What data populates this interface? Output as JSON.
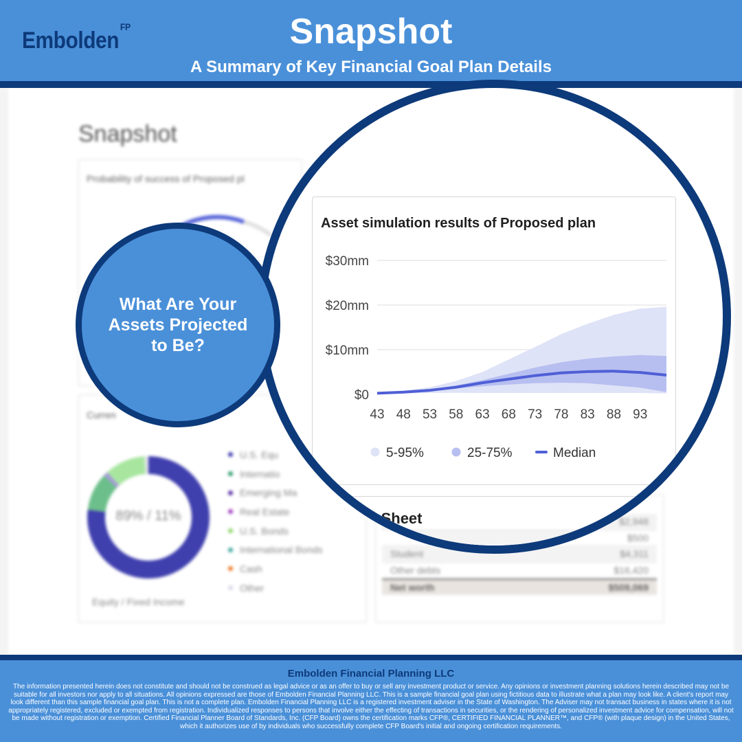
{
  "header": {
    "logo_text": "Embolden",
    "logo_superscript": "FP",
    "title": "Snapshot",
    "subtitle": "A Summary of Key Financial Goal Plan Details"
  },
  "background_page": {
    "title": "Snapshot",
    "probability_card_title": "Probability of success of Proposed pl",
    "allocation_card_title": "Curren",
    "donut_label": "89% / 11%",
    "donut_caption": "Equity / Fixed Income",
    "allocation_legend": [
      {
        "label": "U.S. Equ",
        "color": "#3f3fae"
      },
      {
        "label": "Internatio",
        "color": "#2e9e6e"
      },
      {
        "label": "Emerging Ma",
        "color": "#5a2fa8"
      },
      {
        "label": "Real Estate",
        "color": "#a040c0"
      },
      {
        "label": "U.S. Bonds",
        "color": "#8fd66a"
      },
      {
        "label": "International Bonds",
        "color": "#40a8a0"
      },
      {
        "label": "Cash",
        "color": "#f07a2a"
      },
      {
        "label": "Other",
        "color": "#d8d8e8"
      }
    ],
    "donut_segments": [
      {
        "value": 77,
        "color": "#3f3fae"
      },
      {
        "value": 10,
        "color": "#6cbf8a"
      },
      {
        "value": 1.2,
        "color": "#a49ad8"
      },
      {
        "value": 10.8,
        "color": "#a8e6a0"
      },
      {
        "value": 1,
        "color": "#e8e8f0"
      }
    ],
    "balance_sheet_title": "ce Sheet",
    "balance_rows": [
      {
        "label": "",
        "value": "$2,948"
      },
      {
        "label": "",
        "value": "$500"
      },
      {
        "label": "Student",
        "value": "$4,311"
      },
      {
        "label": "Other debts",
        "value": "$16,420"
      }
    ],
    "balance_total": {
      "label": "Net worth",
      "value": "$509,069"
    }
  },
  "callout": {
    "text": "What Are Your Assets Projected to Be?"
  },
  "chart_data": {
    "type": "area",
    "title": "Asset simulation results of Proposed plan",
    "y_tick_labels": [
      "$0",
      "$10mm",
      "$20mm",
      "$30mm"
    ],
    "y_ticks": [
      0,
      10,
      20,
      30
    ],
    "ylim": [
      0,
      30
    ],
    "x_tick_labels": [
      "43",
      "48",
      "53",
      "58",
      "63",
      "68",
      "73",
      "78",
      "83",
      "88",
      "93"
    ],
    "xlim": [
      43,
      98
    ],
    "x": [
      43,
      48,
      53,
      58,
      63,
      68,
      73,
      78,
      83,
      88,
      93,
      98
    ],
    "series": [
      {
        "name": "5-95%",
        "color": "#dfe3f7",
        "lower": [
          0.1,
          0.2,
          0.3,
          0.35,
          0.3,
          0.3,
          0.3,
          0.3,
          0.3,
          0.3,
          0.3,
          0.2
        ],
        "upper": [
          0.4,
          0.8,
          1.6,
          3.0,
          5.0,
          7.8,
          10.6,
          13.5,
          15.8,
          17.8,
          19.2,
          19.6
        ]
      },
      {
        "name": "25-75%",
        "color": "#b7bff0",
        "lower": [
          0.2,
          0.4,
          0.8,
          1.3,
          1.8,
          2.2,
          2.5,
          2.6,
          2.5,
          2.0,
          1.5,
          0.5
        ],
        "upper": [
          0.3,
          0.6,
          1.1,
          2.0,
          3.2,
          4.6,
          6.0,
          7.2,
          8.0,
          8.5,
          8.8,
          8.6
        ]
      },
      {
        "name": "Median",
        "color": "#4f5fd6",
        "values": [
          0.25,
          0.5,
          0.9,
          1.6,
          2.6,
          3.4,
          4.2,
          4.8,
          5.1,
          5.2,
          4.9,
          4.3
        ]
      }
    ],
    "legend_position": "bottom",
    "grid": true
  },
  "footer": {
    "company": "Embolden Financial Planning LLC",
    "disclaimer": "The information presented herein does not constitute and should not be construed as legal advice or as an offer to buy or sell any investment product or service. Any opinions or investment planning solutions herein described may not be suitable for all investors nor apply to all situations. All opinions expressed are those of Embolden Financial Planning LLC. This is a sample financial goal plan using fictitious data to illustrate what a plan may look like. A client's report may look different than this sample financial goal plan. This is not a complete plan. Embolden Financial Planning LLC is a registered investment adviser in the State of Washington. The Adviser may not transact business in states where it is not appropriately registered, excluded or exempted from registration. Individualized responses to persons that involve either the effecting of transactions in securities, or the rendering of personalized investment advice for compensation, will not be made without registration or exemption. Certified Financial Planner Board of Standards, Inc. (CFP Board) owns the certification marks CFP®, CERTIFIED FINANCIAL PLANNER™, and CFP® (with plaque design) in the United States, which it authorizes use of by individuals who successfully complete CFP Board's initial and ongoing certification requirements."
  }
}
